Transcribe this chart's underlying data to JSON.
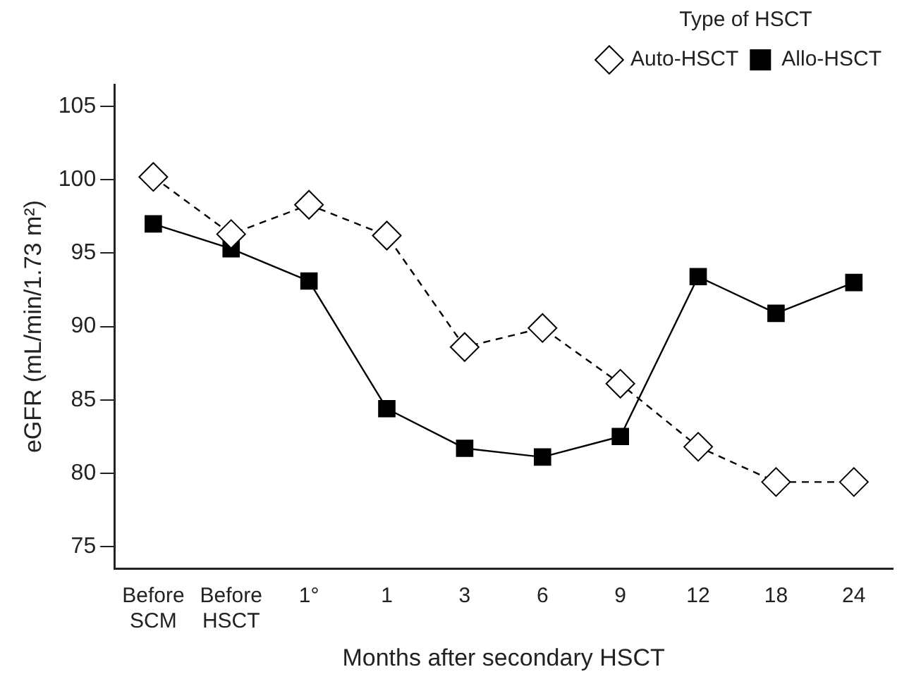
{
  "chart_data": {
    "type": "line",
    "xlabel": "Months after secondary HSCT",
    "ylabel": "eGFR (mL/min/1.73 m²)",
    "legend_title": "Type of HSCT",
    "categories": [
      "Before SCM",
      "Before HSCT",
      "1°",
      "1",
      "3",
      "6",
      "9",
      "12",
      "18",
      "24"
    ],
    "series": [
      {
        "name": "Auto-HSCT",
        "color": "#000000",
        "marker": "diamond",
        "line_style": "dashed",
        "values": [
          100.2,
          96.3,
          98.3,
          96.2,
          88.6,
          89.9,
          86.1,
          81.8,
          79.4,
          79.4
        ]
      },
      {
        "name": "Allo-HSCT",
        "color": "#000000",
        "marker": "square",
        "line_style": "solid",
        "values": [
          97.0,
          95.3,
          93.1,
          84.4,
          81.7,
          81.1,
          82.5,
          93.4,
          90.9,
          93.0
        ]
      }
    ],
    "ylim": [
      73.5,
      106.5
    ],
    "yticks": [
      75,
      80,
      85,
      90,
      95,
      100,
      105
    ],
    "grid": false,
    "legend": "top right"
  }
}
